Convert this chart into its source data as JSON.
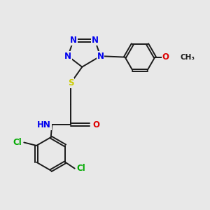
{
  "bg_color": "#e8e8e8",
  "bond_color": "#1a1a1a",
  "N_color": "#0000ee",
  "S_color": "#cccc00",
  "O_color": "#dd0000",
  "Cl_color": "#00aa00",
  "C_color": "#1a1a1a",
  "font_size": 8.5,
  "lw": 1.4,
  "xlim": [
    0,
    10
  ],
  "ylim": [
    0,
    10
  ]
}
